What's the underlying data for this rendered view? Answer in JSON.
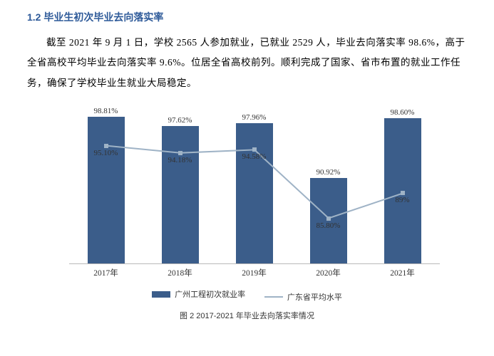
{
  "heading": "1.2 毕业生初次毕业去向落实率",
  "paragraph": "截至 2021 年 9 月 1 日，学校 2565 人参加就业，已就业 2529 人，毕业去向落实率 98.6%，高于全省高校平均毕业去向落实率 9.6%。位居全省高校前列。顺利完成了国家、省市布置的就业工作任务，确保了学校毕业生就业大局稳定。",
  "chart": {
    "type": "bar+line",
    "categories": [
      "2017年",
      "2018年",
      "2019年",
      "2020年",
      "2021年"
    ],
    "bars": {
      "label": "广州工程初次就业率",
      "values": [
        98.81,
        97.62,
        97.96,
        90.92,
        98.6
      ],
      "value_labels": [
        "98.81%",
        "97.62%",
        "97.96%",
        "90.92%",
        "98.60%"
      ],
      "color": "#3b5d8a",
      "bar_width_frac": 0.5
    },
    "line": {
      "label": "广东省平均水平",
      "values": [
        95.1,
        94.18,
        94.58,
        85.8,
        89.0
      ],
      "value_labels": [
        "95.10%",
        "94.18%",
        "94.58%",
        "85.80%",
        "89%"
      ],
      "color": "#9fb3c6",
      "stroke_width": 2,
      "marker_size": 6
    },
    "ylim": [
      80,
      100
    ],
    "background_color": "#ffffff",
    "label_fontsize": 11
  },
  "caption": "图 2 2017-2021 年毕业去向落实率情况"
}
